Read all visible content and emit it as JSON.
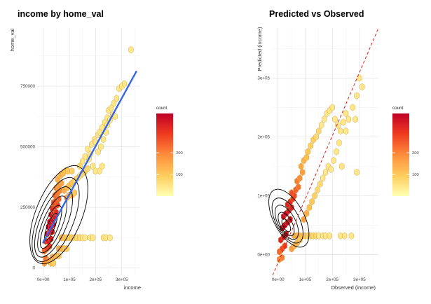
{
  "chart_data": [
    {
      "type": "hexbin",
      "title": "income by home_val",
      "xlabel": "income",
      "ylabel": "home_val",
      "xlim": [
        -20000,
        370000
      ],
      "ylim": [
        -30000,
        990000
      ],
      "x_ticks": [
        0,
        100000,
        200000,
        300000
      ],
      "x_tick_labels": [
        "0e+00",
        "1e+05",
        "2e+05",
        "3e+05"
      ],
      "y_ticks": [
        0,
        250000,
        500000,
        750000
      ],
      "y_tick_labels": [
        "0",
        "250000",
        "500000",
        "750000"
      ],
      "grid": true,
      "legend": {
        "title": "count",
        "range": [
          1,
          380
        ],
        "breaks": [
          100,
          200
        ],
        "break_labels": [
          "100",
          "200"
        ],
        "colors": [
          "#FFFFB2",
          "#FECC5C",
          "#FD8D3C",
          "#F03B20",
          "#BD0026"
        ],
        "placement": "right"
      },
      "fit_line": {
        "color": "#3366E6",
        "points": [
          [
            0,
            105000
          ],
          [
            355000,
            810000
          ]
        ]
      },
      "density_contours": [
        {
          "cx": 30000,
          "cy": 170000,
          "rx": 14000,
          "ry": 60000
        },
        {
          "cx": 30000,
          "cy": 170000,
          "rx": 26000,
          "ry": 95000
        },
        {
          "cx": 35000,
          "cy": 180000,
          "rx": 38000,
          "ry": 125000
        },
        {
          "cx": 40000,
          "cy": 190000,
          "rx": 52000,
          "ry": 155000
        },
        {
          "cx": 48000,
          "cy": 200000,
          "rx": 68000,
          "ry": 185000
        },
        {
          "cx": 60000,
          "cy": 220000,
          "rx": 88000,
          "ry": 215000
        }
      ],
      "hexbins": [
        [
          5000,
          20000,
          15
        ],
        [
          10000,
          40000,
          30
        ],
        [
          20000,
          30000,
          12
        ],
        [
          35000,
          45000,
          9
        ],
        [
          5000,
          70000,
          40
        ],
        [
          15000,
          80000,
          70
        ],
        [
          25000,
          90000,
          90
        ],
        [
          10000,
          110000,
          140
        ],
        [
          20000,
          110000,
          170
        ],
        [
          30000,
          120000,
          190
        ],
        [
          15000,
          140000,
          220
        ],
        [
          25000,
          150000,
          280
        ],
        [
          35000,
          150000,
          240
        ],
        [
          20000,
          170000,
          380
        ],
        [
          30000,
          170000,
          330
        ],
        [
          40000,
          180000,
          260
        ],
        [
          25000,
          190000,
          300
        ],
        [
          35000,
          200000,
          250
        ],
        [
          45000,
          210000,
          190
        ],
        [
          30000,
          220000,
          200
        ],
        [
          40000,
          230000,
          160
        ],
        [
          50000,
          230000,
          120
        ],
        [
          35000,
          245000,
          120
        ],
        [
          45000,
          255000,
          100
        ],
        [
          55000,
          260000,
          80
        ],
        [
          40000,
          270000,
          70
        ],
        [
          50000,
          280000,
          55
        ],
        [
          60000,
          285000,
          40
        ],
        [
          45000,
          300000,
          35
        ],
        [
          55000,
          310000,
          30
        ],
        [
          65000,
          320000,
          22
        ],
        [
          50000,
          330000,
          18
        ],
        [
          60000,
          340000,
          14
        ],
        [
          70000,
          350000,
          10
        ],
        [
          55000,
          365000,
          8
        ],
        [
          65000,
          380000,
          7
        ],
        [
          75000,
          390000,
          6
        ],
        [
          85000,
          400000,
          5
        ],
        [
          95000,
          400000,
          4
        ],
        [
          110000,
          400000,
          3
        ],
        [
          80000,
          320000,
          8
        ],
        [
          90000,
          330000,
          6
        ],
        [
          100000,
          340000,
          5
        ],
        [
          110000,
          350000,
          4
        ],
        [
          90000,
          290000,
          9
        ],
        [
          100000,
          300000,
          7
        ],
        [
          110000,
          300000,
          6
        ],
        [
          120000,
          310000,
          4
        ],
        [
          120000,
          360000,
          3
        ],
        [
          130000,
          370000,
          3
        ],
        [
          140000,
          380000,
          2
        ],
        [
          150000,
          390000,
          2
        ],
        [
          160000,
          400000,
          2
        ],
        [
          170000,
          410000,
          2
        ],
        [
          175000,
          450000,
          1
        ],
        [
          180000,
          470000,
          1
        ],
        [
          140000,
          420000,
          2
        ],
        [
          150000,
          440000,
          1
        ],
        [
          160000,
          460000,
          1
        ],
        [
          170000,
          490000,
          1
        ],
        [
          185000,
          510000,
          1
        ],
        [
          195000,
          530000,
          1
        ],
        [
          200000,
          520000,
          1
        ],
        [
          210000,
          550000,
          1
        ],
        [
          215000,
          560000,
          1
        ],
        [
          225000,
          580000,
          1
        ],
        [
          235000,
          600000,
          1
        ],
        [
          245000,
          620000,
          1
        ],
        [
          250000,
          650000,
          1
        ],
        [
          260000,
          660000,
          1
        ],
        [
          270000,
          680000,
          1
        ],
        [
          280000,
          700000,
          1
        ],
        [
          290000,
          740000,
          1
        ],
        [
          300000,
          750000,
          1
        ],
        [
          310000,
          760000,
          1
        ],
        [
          335000,
          900000,
          1
        ],
        [
          190000,
          420000,
          1
        ],
        [
          200000,
          400000,
          1
        ],
        [
          215000,
          400000,
          1
        ],
        [
          225000,
          420000,
          1
        ],
        [
          210000,
          480000,
          1
        ],
        [
          220000,
          500000,
          1
        ],
        [
          230000,
          530000,
          1
        ],
        [
          240000,
          560000,
          1
        ],
        [
          245000,
          590000,
          1
        ],
        [
          255000,
          610000,
          1
        ],
        [
          265000,
          630000,
          1
        ],
        [
          275000,
          625000,
          1
        ],
        [
          70000,
          125000,
          6
        ],
        [
          80000,
          125000,
          5
        ],
        [
          90000,
          125000,
          4
        ],
        [
          100000,
          125000,
          3
        ],
        [
          110000,
          125000,
          3
        ],
        [
          120000,
          125000,
          2
        ],
        [
          130000,
          125000,
          2
        ],
        [
          140000,
          125000,
          2
        ],
        [
          150000,
          125000,
          1
        ],
        [
          160000,
          125000,
          1
        ],
        [
          180000,
          125000,
          1
        ],
        [
          190000,
          125000,
          1
        ],
        [
          230000,
          125000,
          1
        ],
        [
          240000,
          125000,
          1
        ],
        [
          255000,
          125000,
          1
        ],
        [
          60000,
          80000,
          10
        ],
        [
          70000,
          80000,
          7
        ],
        [
          80000,
          80000,
          5
        ],
        [
          90000,
          80000,
          3
        ],
        [
          30000,
          20000,
          5
        ],
        [
          40000,
          20000,
          3
        ],
        [
          50000,
          50000,
          6
        ],
        [
          60000,
          50000,
          4
        ]
      ]
    },
    {
      "type": "hexbin",
      "title": "Predicted vs Observed",
      "xlabel": "Observed (income)",
      "ylabel": "Predicted (income)",
      "xlim": [
        -20000,
        370000
      ],
      "ylim": [
        -35000,
        385000
      ],
      "x_ticks": [
        0,
        100000,
        200000,
        300000
      ],
      "x_tick_labels": [
        "0e+00",
        "1e+05",
        "2e+05",
        "3e+05"
      ],
      "y_ticks": [
        0,
        100000,
        200000,
        300000
      ],
      "y_tick_labels": [
        "0e+00",
        "1e+05",
        "2e+05",
        "3e+05"
      ],
      "grid": true,
      "legend": {
        "title": "count",
        "range": [
          1,
          380
        ],
        "breaks": [
          100,
          200
        ],
        "break_labels": [
          "100",
          "200"
        ],
        "colors": [
          "#FFFFB2",
          "#FECC5C",
          "#FD8D3C",
          "#F03B20",
          "#BD0026"
        ],
        "placement": "right"
      },
      "identity_line": {
        "color": "#E0201B",
        "points": [
          [
            -20000,
            -35000
          ],
          [
            370000,
            385000
          ]
        ]
      },
      "density_contours": [
        {
          "cx": 30000,
          "cy": 50000,
          "rx": 12000,
          "ry": 12000
        },
        {
          "cx": 30000,
          "cy": 52000,
          "rx": 22000,
          "ry": 22000
        },
        {
          "cx": 32000,
          "cy": 55000,
          "rx": 32000,
          "ry": 32000
        },
        {
          "cx": 35000,
          "cy": 58000,
          "rx": 43000,
          "ry": 42000
        },
        {
          "cx": 40000,
          "cy": 62000,
          "rx": 56000,
          "ry": 54000
        }
      ],
      "hexbins": [
        [
          5000,
          -8000,
          20
        ],
        [
          15000,
          -5000,
          25
        ],
        [
          5000,
          5000,
          40
        ],
        [
          15000,
          10000,
          70
        ],
        [
          25000,
          15000,
          80
        ],
        [
          10000,
          25000,
          150
        ],
        [
          20000,
          30000,
          230
        ],
        [
          30000,
          35000,
          260
        ],
        [
          15000,
          45000,
          300
        ],
        [
          25000,
          50000,
          380
        ],
        [
          35000,
          55000,
          330
        ],
        [
          45000,
          60000,
          240
        ],
        [
          20000,
          65000,
          280
        ],
        [
          30000,
          70000,
          300
        ],
        [
          40000,
          75000,
          230
        ],
        [
          50000,
          80000,
          160
        ],
        [
          35000,
          85000,
          160
        ],
        [
          45000,
          90000,
          130
        ],
        [
          55000,
          95000,
          100
        ],
        [
          60000,
          100000,
          70
        ],
        [
          50000,
          105000,
          60
        ],
        [
          65000,
          110000,
          45
        ],
        [
          75000,
          115000,
          30
        ],
        [
          70000,
          125000,
          25
        ],
        [
          80000,
          130000,
          18
        ],
        [
          90000,
          140000,
          12
        ],
        [
          85000,
          150000,
          9
        ],
        [
          95000,
          160000,
          7
        ],
        [
          105000,
          165000,
          5
        ],
        [
          110000,
          175000,
          4
        ],
        [
          120000,
          185000,
          3
        ],
        [
          130000,
          195000,
          3
        ],
        [
          140000,
          200000,
          2
        ],
        [
          150000,
          210000,
          2
        ],
        [
          160000,
          220000,
          1
        ],
        [
          170000,
          230000,
          1
        ],
        [
          180000,
          240000,
          1
        ],
        [
          190000,
          245000,
          1
        ],
        [
          200000,
          250000,
          1
        ],
        [
          210000,
          230000,
          1
        ],
        [
          220000,
          220000,
          1
        ],
        [
          230000,
          210000,
          1
        ],
        [
          240000,
          225000,
          1
        ],
        [
          250000,
          240000,
          1
        ],
        [
          260000,
          230000,
          1
        ],
        [
          275000,
          250000,
          1
        ],
        [
          290000,
          270000,
          1
        ],
        [
          300000,
          300000,
          1
        ],
        [
          310000,
          285000,
          1
        ],
        [
          285000,
          230000,
          1
        ],
        [
          290000,
          140000,
          1
        ],
        [
          60000,
          32000,
          9
        ],
        [
          70000,
          32000,
          8
        ],
        [
          80000,
          32000,
          6
        ],
        [
          90000,
          32000,
          5
        ],
        [
          100000,
          32000,
          4
        ],
        [
          110000,
          32000,
          3
        ],
        [
          120000,
          32000,
          3
        ],
        [
          130000,
          32000,
          2
        ],
        [
          140000,
          32000,
          2
        ],
        [
          150000,
          32000,
          1
        ],
        [
          165000,
          32000,
          1
        ],
        [
          175000,
          32000,
          1
        ],
        [
          190000,
          32000,
          1
        ],
        [
          230000,
          32000,
          1
        ],
        [
          245000,
          32000,
          1
        ],
        [
          270000,
          32000,
          1
        ],
        [
          50000,
          10000,
          12
        ],
        [
          60000,
          15000,
          8
        ],
        [
          70000,
          20000,
          6
        ],
        [
          80000,
          25000,
          4
        ],
        [
          95000,
          60000,
          12
        ],
        [
          105000,
          70000,
          8
        ],
        [
          115000,
          80000,
          5
        ],
        [
          125000,
          90000,
          4
        ],
        [
          135000,
          100000,
          3
        ],
        [
          145000,
          110000,
          2
        ],
        [
          155000,
          120000,
          2
        ],
        [
          165000,
          130000,
          1
        ],
        [
          175000,
          140000,
          1
        ],
        [
          185000,
          150000,
          1
        ],
        [
          195000,
          145000,
          1
        ],
        [
          205000,
          160000,
          1
        ],
        [
          215000,
          175000,
          1
        ],
        [
          225000,
          190000,
          1
        ],
        [
          235000,
          150000,
          1
        ],
        [
          250000,
          210000,
          1
        ]
      ]
    }
  ]
}
